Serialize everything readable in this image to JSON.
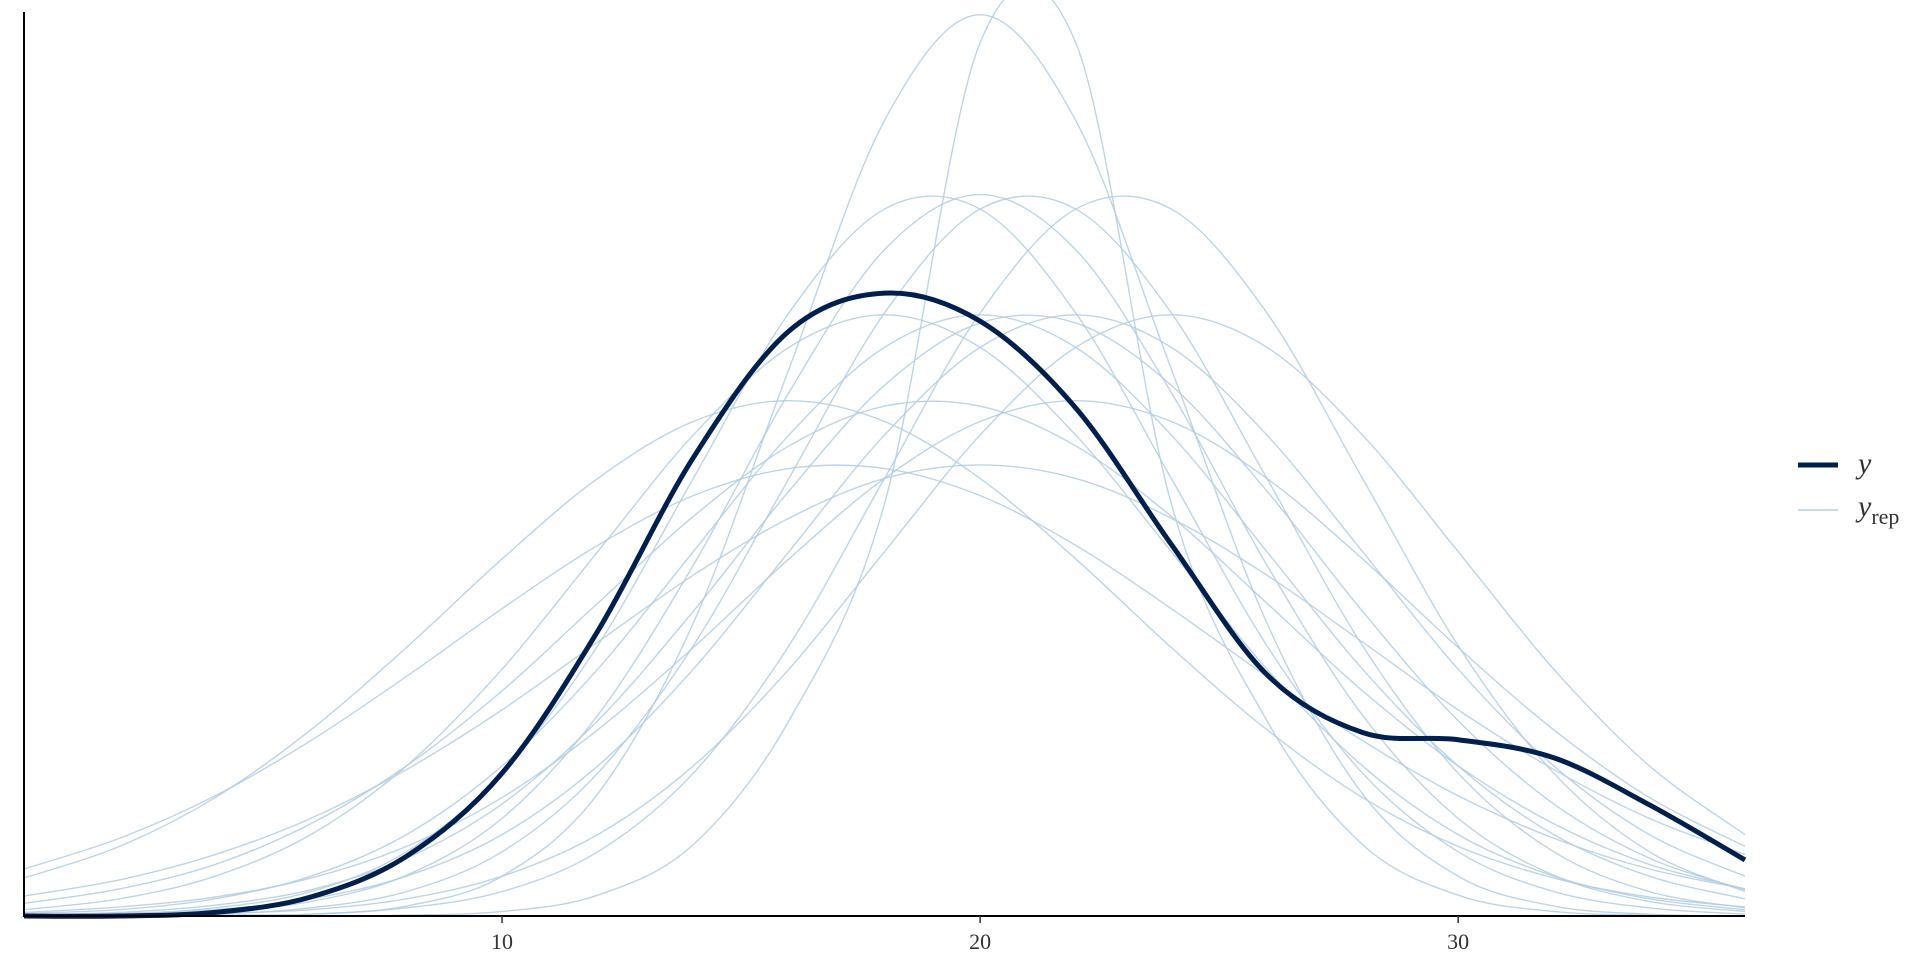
{
  "chart_data": {
    "type": "line",
    "x": [
      0,
      2,
      4,
      6,
      8,
      10,
      12,
      14,
      16,
      18,
      20,
      22,
      24,
      26,
      28,
      30,
      32,
      34,
      36
    ],
    "xlim": [
      0,
      36
    ],
    "xticks": [
      10,
      20,
      30
    ],
    "ylim": [
      0,
      0.1
    ],
    "series": [
      {
        "name": "y",
        "color": "#011f4b",
        "values": [
          0,
          0,
          0.0004,
          0.0021,
          0.0066,
          0.0158,
          0.0315,
          0.0507,
          0.0647,
          0.0689,
          0.0658,
          0.0562,
          0.0411,
          0.0267,
          0.0203,
          0.0195,
          0.0175,
          0.0123,
          0.0062
        ]
      }
    ],
    "replicates": {
      "name": "y",
      "subscript": "rep",
      "color": "#b3cde0",
      "values": [
        [
          0,
          0,
          0,
          0,
          0.0001,
          0.0005,
          0.0023,
          0.0079,
          0.0216,
          0.0456,
          0.0966,
          0.0966,
          0.0456,
          0.0216,
          0.0079,
          0.0023,
          0.0005,
          0.0001,
          0
        ],
        [
          0,
          0.0001,
          0.0005,
          0.0016,
          0.0045,
          0.0108,
          0.0222,
          0.0388,
          0.0579,
          0.0737,
          0.0798,
          0.0737,
          0.0579,
          0.0388,
          0.0222,
          0.0108,
          0.0045,
          0.0016,
          0.0005
        ],
        [
          0.0001,
          0.0002,
          0.0009,
          0.0027,
          0.0071,
          0.0158,
          0.0299,
          0.0484,
          0.0667,
          0.0782,
          0.0782,
          0.0667,
          0.0484,
          0.0299,
          0.0158,
          0.0071,
          0.0027,
          0.0009,
          0.0002
        ],
        [
          0.0001,
          0.0003,
          0.0007,
          0.0019,
          0.0044,
          0.009,
          0.0166,
          0.0273,
          0.0403,
          0.0532,
          0.0629,
          0.0665,
          0.0629,
          0.0532,
          0.0403,
          0.0273,
          0.0166,
          0.009,
          0.0044
        ],
        [
          0.0001,
          0.0004,
          0.0012,
          0.0029,
          0.0064,
          0.0124,
          0.0216,
          0.0337,
          0.047,
          0.0587,
          0.0656,
          0.0656,
          0.0587,
          0.047,
          0.0337,
          0.0216,
          0.0124,
          0.0064,
          0.0029
        ],
        [
          0.0022,
          0.004,
          0.0068,
          0.0108,
          0.0162,
          0.0228,
          0.0303,
          0.0377,
          0.044,
          0.0484,
          0.0499,
          0.0484,
          0.044,
          0.0377,
          0.0303,
          0.0228,
          0.0162,
          0.0108,
          0.0068
        ],
        [
          0.0014,
          0.003,
          0.0057,
          0.0102,
          0.0166,
          0.0249,
          0.0346,
          0.0442,
          0.052,
          0.0564,
          0.0564,
          0.052,
          0.0442,
          0.0346,
          0.0249,
          0.0166,
          0.0102,
          0.0057,
          0.003
        ],
        [
          0,
          0,
          0.0001,
          0.0002,
          0.0009,
          0.0027,
          0.0071,
          0.0158,
          0.0299,
          0.0484,
          0.0667,
          0.0782,
          0.0782,
          0.0667,
          0.0484,
          0.0299,
          0.0158,
          0.0071,
          0.0027
        ],
        [
          0.0007,
          0.0019,
          0.0044,
          0.009,
          0.0166,
          0.0273,
          0.0403,
          0.0532,
          0.0629,
          0.0665,
          0.0629,
          0.0532,
          0.0403,
          0.0273,
          0.0166,
          0.009,
          0.0044,
          0.0019,
          0.0007
        ],
        [
          0.0004,
          0.001,
          0.0021,
          0.0042,
          0.0077,
          0.0131,
          0.0206,
          0.0297,
          0.0395,
          0.0484,
          0.0547,
          0.057,
          0.0547,
          0.0484,
          0.0395,
          0.0297,
          0.0206,
          0.0131,
          0.0077
        ],
        [
          0.0052,
          0.0086,
          0.0133,
          0.0194,
          0.0265,
          0.034,
          0.041,
          0.0465,
          0.0495,
          0.0495,
          0.0465,
          0.041,
          0.034,
          0.0265,
          0.0194,
          0.0133,
          0.0086,
          0.0052,
          0.003
        ],
        [
          0,
          0,
          0,
          0.0002,
          0.0011,
          0.0044,
          0.0135,
          0.0324,
          0.0605,
          0.088,
          0.0997,
          0.088,
          0.0605,
          0.0324,
          0.0135,
          0.0044,
          0.0011,
          0.0002,
          0
        ],
        [
          0,
          0.0001,
          0.0003,
          0.0007,
          0.0019,
          0.0044,
          0.009,
          0.0166,
          0.0273,
          0.0403,
          0.0532,
          0.0629,
          0.0665,
          0.0629,
          0.0532,
          0.0403,
          0.0273,
          0.0166,
          0.009
        ],
        [
          0.0042,
          0.0077,
          0.0131,
          0.0206,
          0.0297,
          0.0395,
          0.0484,
          0.0547,
          0.057,
          0.0547,
          0.0484,
          0.0395,
          0.0297,
          0.0206,
          0.0131,
          0.0077,
          0.0042,
          0.0021,
          0.001
        ],
        [
          0,
          0.0001,
          0.0002,
          0.0009,
          0.0027,
          0.0071,
          0.0158,
          0.0299,
          0.0484,
          0.0667,
          0.0782,
          0.0782,
          0.0667,
          0.0484,
          0.0299,
          0.0158,
          0.0071,
          0.0027,
          0.0009
        ],
        [
          0.0003,
          0.0007,
          0.0019,
          0.0044,
          0.009,
          0.0166,
          0.0273,
          0.0403,
          0.0532,
          0.0629,
          0.0665,
          0.0629,
          0.0532,
          0.0403,
          0.0273,
          0.0166,
          0.009,
          0.0044,
          0.0019
        ]
      ]
    }
  }
}
